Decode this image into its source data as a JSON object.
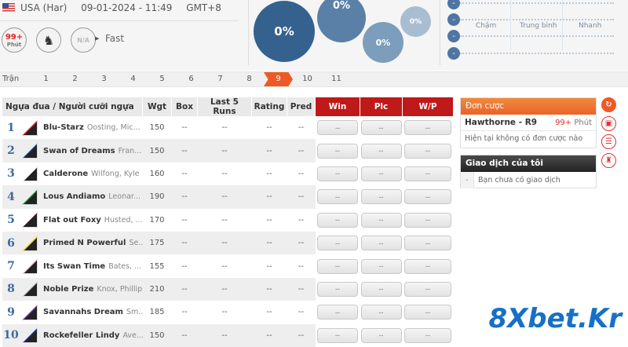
{
  "header": {
    "country": "USA (Har)",
    "datetime": "09-01-2024 - 11:49",
    "timezone": "GMT+8",
    "countdown": "99+",
    "countdown_unit": "Phút",
    "track_condition": "Fast",
    "weather": "N/A",
    "flag_icon": "us-flag-icon",
    "race_type_icon": "harness-horse-icon"
  },
  "bubbles": [
    "0%",
    "0%",
    "0%",
    "0%"
  ],
  "speed": {
    "labels": [
      "Chậm",
      "Trung bình",
      "Nhanh"
    ],
    "toggle": "-"
  },
  "race_tabs": {
    "label": "Trận",
    "items": [
      "1",
      "2",
      "3",
      "4",
      "5",
      "6",
      "7",
      "8",
      "9",
      "10",
      "11"
    ],
    "active": "9"
  },
  "table": {
    "headers": [
      "Ngựa đua / Người cưỡi ngựa",
      "Wgt",
      "Box",
      "Last 5 Runs",
      "Rating",
      "Pred",
      "Win",
      "Plc",
      "W/P"
    ],
    "rows": [
      {
        "num": "1",
        "horse": "Blu-Starz",
        "jockey": "Oosting, Mic...",
        "wgt": "150",
        "box": "--",
        "last5": "--",
        "rating": "--",
        "pred": "--",
        "win": "--",
        "plc": "--",
        "wp": "--",
        "silk": "#e02020"
      },
      {
        "num": "2",
        "horse": "Swan of Dreams",
        "jockey": "Fran...",
        "wgt": "150",
        "box": "--",
        "last5": "--",
        "rating": "--",
        "pred": "--",
        "win": "--",
        "plc": "--",
        "wp": "--",
        "silk": "#1f4fa8"
      },
      {
        "num": "3",
        "horse": "Calderone",
        "jockey": "Wilfong, Kyle",
        "wgt": "160",
        "box": "--",
        "last5": "--",
        "rating": "--",
        "pred": "--",
        "win": "--",
        "plc": "--",
        "wp": "--",
        "silk": "#ffffff"
      },
      {
        "num": "4",
        "horse": "Lous Andiamo",
        "jockey": "Leonar...",
        "wgt": "190",
        "box": "--",
        "last5": "--",
        "rating": "--",
        "pred": "--",
        "win": "--",
        "plc": "--",
        "wp": "--",
        "silk": "#1a8a3a"
      },
      {
        "num": "5",
        "horse": "Flat out Foxy",
        "jockey": "Husted, ...",
        "wgt": "170",
        "box": "--",
        "last5": "--",
        "rating": "--",
        "pred": "--",
        "win": "--",
        "plc": "--",
        "wp": "--",
        "silk": "#4a1a1a"
      },
      {
        "num": "6",
        "horse": "Primed N Powerful",
        "jockey": "Se...",
        "wgt": "175",
        "box": "--",
        "last5": "--",
        "rating": "--",
        "pred": "--",
        "win": "--",
        "plc": "--",
        "wp": "--",
        "silk": "#f0e020"
      },
      {
        "num": "7",
        "horse": "Its Swan Time",
        "jockey": "Bates, ...",
        "wgt": "155",
        "box": "--",
        "last5": "--",
        "rating": "--",
        "pred": "--",
        "win": "--",
        "plc": "--",
        "wp": "--",
        "silk": "#f5b8c8"
      },
      {
        "num": "8",
        "horse": "Noble Prize",
        "jockey": "Knox, Phillip",
        "wgt": "210",
        "box": "--",
        "last5": "--",
        "rating": "--",
        "pred": "--",
        "win": "--",
        "plc": "--",
        "wp": "--",
        "silk": "#a0a0a0"
      },
      {
        "num": "9",
        "horse": "Savannahs Dream",
        "jockey": "Sm...",
        "wgt": "185",
        "box": "--",
        "last5": "--",
        "rating": "--",
        "pred": "--",
        "win": "--",
        "plc": "--",
        "wp": "--",
        "silk": "#7a3aa8"
      },
      {
        "num": "10",
        "horse": "Rockefeller Lindy",
        "jockey": "Ave...",
        "wgt": "150",
        "box": "--",
        "last5": "--",
        "rating": "--",
        "pred": "--",
        "win": "--",
        "plc": "--",
        "wp": "--",
        "silk": "#2030e0"
      }
    ]
  },
  "betslip": {
    "title": "Đơn cược",
    "race": "Hawthorne - R9",
    "time": "99+",
    "time_unit": "Phút",
    "empty": "Hiện tại không có đơn cược nào"
  },
  "transactions": {
    "title": "Giao dịch của tôi",
    "bullet": "-",
    "empty": "Bạn chưa có giao dịch"
  },
  "side_icons": [
    "refresh-icon",
    "tv-icon",
    "list-icon",
    "trophy-icon"
  ],
  "watermark": "8Xbet.Kr",
  "colors": {
    "accent": "#ee5a24",
    "header_red": "#c0191a",
    "bubble_blue": "#35618f"
  }
}
